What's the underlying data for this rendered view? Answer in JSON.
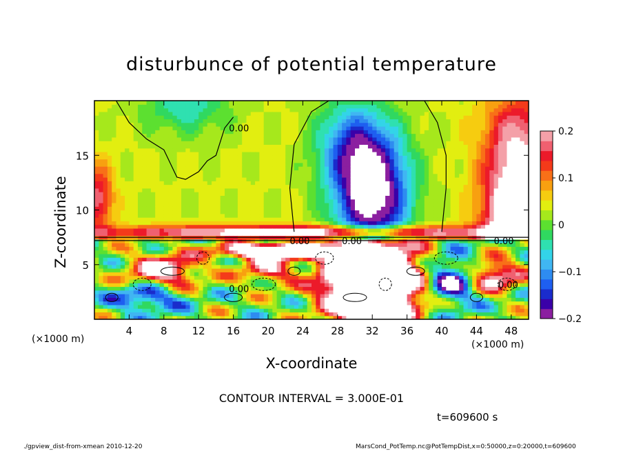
{
  "chart_data": {
    "type": "heatmap",
    "title": "disturbunce of potential temperature",
    "xlabel": "X-coordinate",
    "ylabel": "Z-coordinate",
    "x_unit": "(×1000 m)",
    "y_unit": "(×1000 m)",
    "xlim": [
      0,
      50
    ],
    "ylim": [
      0,
      20
    ],
    "x_ticks": [
      4,
      8,
      12,
      16,
      20,
      24,
      28,
      32,
      36,
      40,
      44,
      48
    ],
    "y_ticks": [
      5,
      10,
      15
    ],
    "colorbar": {
      "range": [
        -0.2,
        0.2
      ],
      "tick_values": [
        0.2,
        0.1,
        0,
        -0.1,
        -0.2
      ],
      "tick_labels": [
        "0.2",
        "0.1",
        "0",
        "−0.1",
        "−0.2"
      ],
      "colors": [
        "#8b1fa0",
        "#3a00a8",
        "#1a2ccc",
        "#1e5ff0",
        "#2e8cf0",
        "#40b6f2",
        "#33d4e8",
        "#2fe0b0",
        "#30d860",
        "#5ce030",
        "#a6e81c",
        "#e2ee10",
        "#f6cc10",
        "#f8a010",
        "#f87018",
        "#f43a1a",
        "#ec1a2a",
        "#f06070",
        "#f4a0a8"
      ]
    },
    "contour_labels": [
      "0.00",
      "0.00",
      "0.00",
      "0.00",
      "0.00",
      "0.00"
    ],
    "contour_interval": "CONTOUR INTERVAL = 3.000E-01",
    "time": "t=609600 s"
  },
  "footer": {
    "left": "./gpview_dist-from-xmean  2010-12-20",
    "right": "MarsCond_PotTemp.nc@PotTempDist,x=0:50000,z=0:20000,t=609600"
  }
}
